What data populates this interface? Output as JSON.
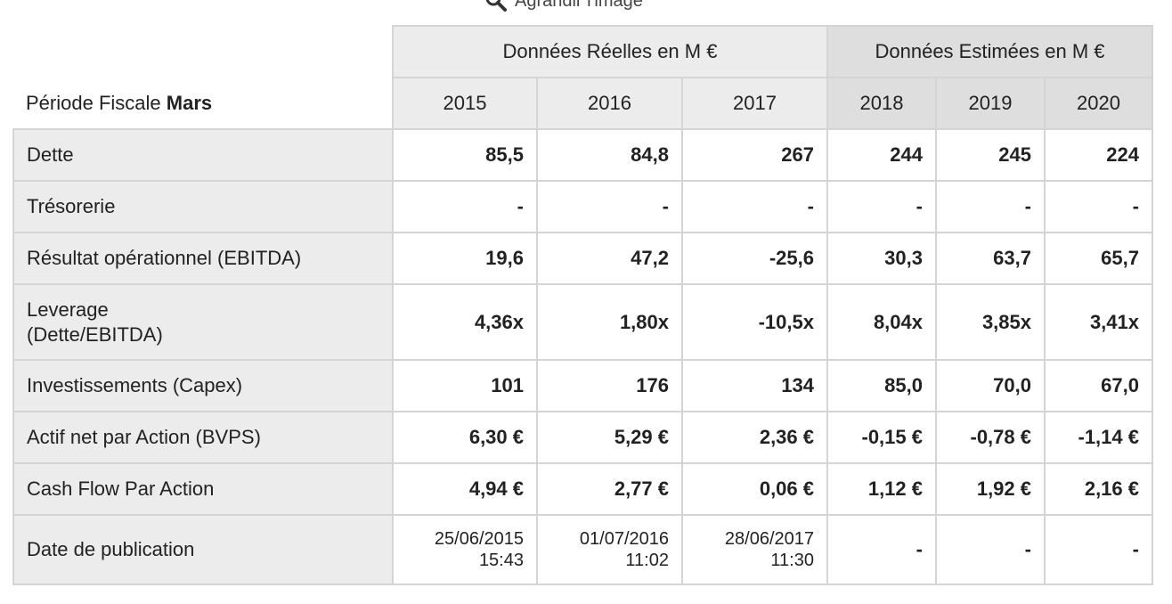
{
  "toolbar": {
    "zoom_label": "Agrandir l'image"
  },
  "table": {
    "period_label": "Période Fiscale",
    "period_value": "Mars",
    "groups": {
      "real": "Données Réelles en M €",
      "estimated": "Données Estimées en M €"
    },
    "years": [
      "2015",
      "2016",
      "2017",
      "2018",
      "2019",
      "2020"
    ],
    "rows": [
      {
        "label": "Dette",
        "values": [
          "85,5",
          "84,8",
          "267",
          "244",
          "245",
          "224"
        ]
      },
      {
        "label": "Trésorerie",
        "values": [
          "-",
          "-",
          "-",
          "-",
          "-",
          "-"
        ]
      },
      {
        "label": "Résultat opérationnel (EBITDA)",
        "values": [
          "19,6",
          "47,2",
          "-25,6",
          "30,3",
          "63,7",
          "65,7"
        ]
      },
      {
        "label_line1": "Leverage",
        "label_line2": "(Dette/EBITDA)",
        "values": [
          "4,36x",
          "1,80x",
          "-10,5x",
          "8,04x",
          "3,85x",
          "3,41x"
        ]
      },
      {
        "label": "Investissements (Capex)",
        "values": [
          "101",
          "176",
          "134",
          "85,0",
          "70,0",
          "67,0"
        ]
      },
      {
        "label": "Actif net par Action (BVPS)",
        "values": [
          "6,30 €",
          "5,29 €",
          "2,36 €",
          "-0,15 €",
          "-0,78 €",
          "-1,14 €"
        ]
      },
      {
        "label": "Cash Flow Par Action",
        "values": [
          "4,94 €",
          "2,77 €",
          "0,06 €",
          "1,12 €",
          "1,92 €",
          "2,16 €"
        ]
      }
    ],
    "publication": {
      "label": "Date de publication",
      "dates": [
        {
          "date": "25/06/2015",
          "time": "15:43"
        },
        {
          "date": "01/07/2016",
          "time": "11:02"
        },
        {
          "date": "28/06/2017",
          "time": "11:30"
        }
      ],
      "estimated": [
        "-",
        "-",
        "-"
      ]
    }
  }
}
